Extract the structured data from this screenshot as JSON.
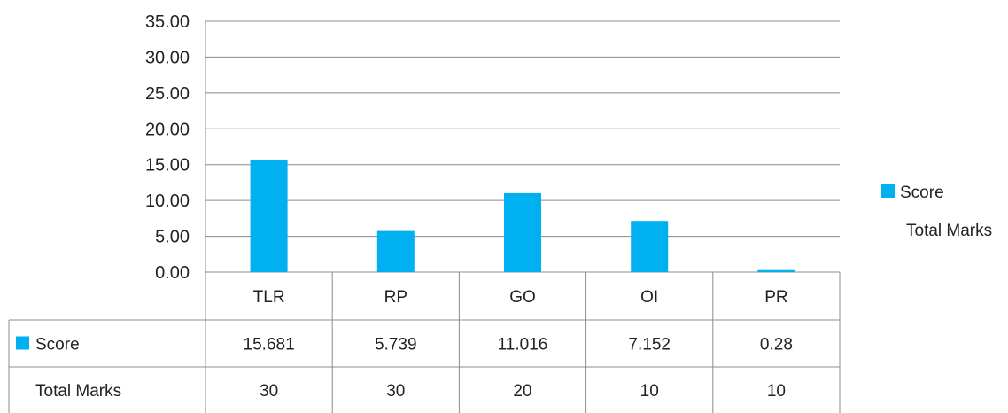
{
  "chart_data": {
    "type": "bar",
    "title": "",
    "xlabel": "",
    "ylabel": "",
    "ylim": [
      0,
      35
    ],
    "yticks": [
      "0.00",
      "5.00",
      "10.00",
      "15.00",
      "20.00",
      "25.00",
      "30.00",
      "35.00"
    ],
    "grid": true,
    "legend_position": "right",
    "categories": [
      "TLR",
      "RP",
      "GO",
      "OI",
      "PR"
    ],
    "series": [
      {
        "name": "Score",
        "values": [
          15.681,
          5.739,
          11.016,
          7.152,
          0.28
        ],
        "labels": [
          "15.681",
          "5.739",
          "11.016",
          "7.152",
          "0.28"
        ],
        "color": "#00B0F0",
        "drawn": true
      },
      {
        "name": "Total Marks",
        "values": [
          30,
          30,
          20,
          10,
          10
        ],
        "labels": [
          "30",
          "30",
          "20",
          "10",
          "10"
        ],
        "color": "",
        "drawn": false
      }
    ]
  }
}
